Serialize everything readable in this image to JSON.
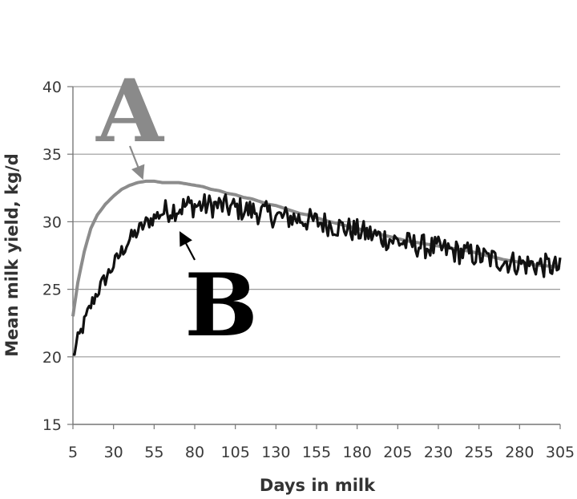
{
  "chart_data": {
    "type": "line",
    "title": "",
    "xlabel": "Days in milk",
    "ylabel": "Mean milk yield, kg/d",
    "xlim": [
      5,
      305
    ],
    "ylim": [
      15,
      40
    ],
    "x_ticks": [
      "5",
      "30",
      "55",
      "80",
      "105",
      "130",
      "155",
      "180",
      "205",
      "230",
      "255",
      "280",
      "305"
    ],
    "y_ticks": [
      "15",
      "20",
      "25",
      "30",
      "35",
      "40"
    ],
    "grid": "horizontal",
    "annotations": [
      {
        "text": "A",
        "color": "#8a8a8a",
        "points_to_series": "A"
      },
      {
        "text": "B",
        "color": "#000000",
        "points_to_series": "B"
      }
    ],
    "series": [
      {
        "name": "A",
        "color": "#8c8c8c",
        "style": "smooth",
        "x": [
          5,
          8,
          12,
          16,
          20,
          25,
          30,
          35,
          40,
          45,
          50,
          55,
          60,
          65,
          70,
          75,
          80,
          85,
          90,
          95,
          100,
          105,
          110,
          115,
          120,
          125,
          130,
          135,
          140,
          145,
          150,
          155,
          160,
          170,
          180,
          190,
          200,
          210,
          220,
          230,
          240,
          250,
          260,
          270,
          280,
          290,
          300,
          305
        ],
        "y": [
          23.0,
          25.5,
          27.8,
          29.5,
          30.5,
          31.3,
          31.9,
          32.4,
          32.7,
          32.9,
          33.0,
          33.0,
          32.9,
          32.9,
          32.9,
          32.8,
          32.7,
          32.6,
          32.4,
          32.3,
          32.1,
          32.0,
          31.8,
          31.7,
          31.5,
          31.3,
          31.2,
          31.0,
          30.8,
          30.6,
          30.5,
          30.3,
          30.1,
          29.8,
          29.5,
          29.2,
          28.9,
          28.6,
          28.4,
          28.2,
          28.0,
          27.8,
          27.5,
          27.2,
          27.0,
          26.8,
          26.7,
          26.6
        ]
      },
      {
        "name": "B",
        "color": "#111111",
        "style": "noisy",
        "x": [
          5,
          8,
          12,
          16,
          20,
          25,
          30,
          35,
          40,
          45,
          50,
          55,
          60,
          65,
          70,
          75,
          80,
          85,
          90,
          95,
          100,
          105,
          110,
          115,
          120,
          125,
          130,
          135,
          140,
          145,
          150,
          155,
          160,
          170,
          180,
          190,
          200,
          210,
          220,
          230,
          240,
          250,
          260,
          270,
          280,
          290,
          300,
          305
        ],
        "y": [
          20.0,
          21.2,
          22.5,
          23.8,
          24.8,
          25.8,
          26.8,
          27.8,
          28.7,
          29.3,
          29.9,
          30.3,
          30.7,
          30.9,
          31.0,
          31.2,
          31.2,
          31.2,
          31.2,
          31.2,
          31.1,
          31.0,
          30.9,
          30.8,
          30.7,
          30.6,
          30.4,
          30.3,
          30.3,
          30.2,
          30.1,
          30.0,
          29.9,
          29.6,
          29.3,
          29.0,
          28.7,
          28.4,
          28.2,
          28.0,
          27.8,
          27.6,
          27.3,
          27.1,
          26.9,
          26.8,
          26.7,
          26.5
        ]
      }
    ]
  }
}
